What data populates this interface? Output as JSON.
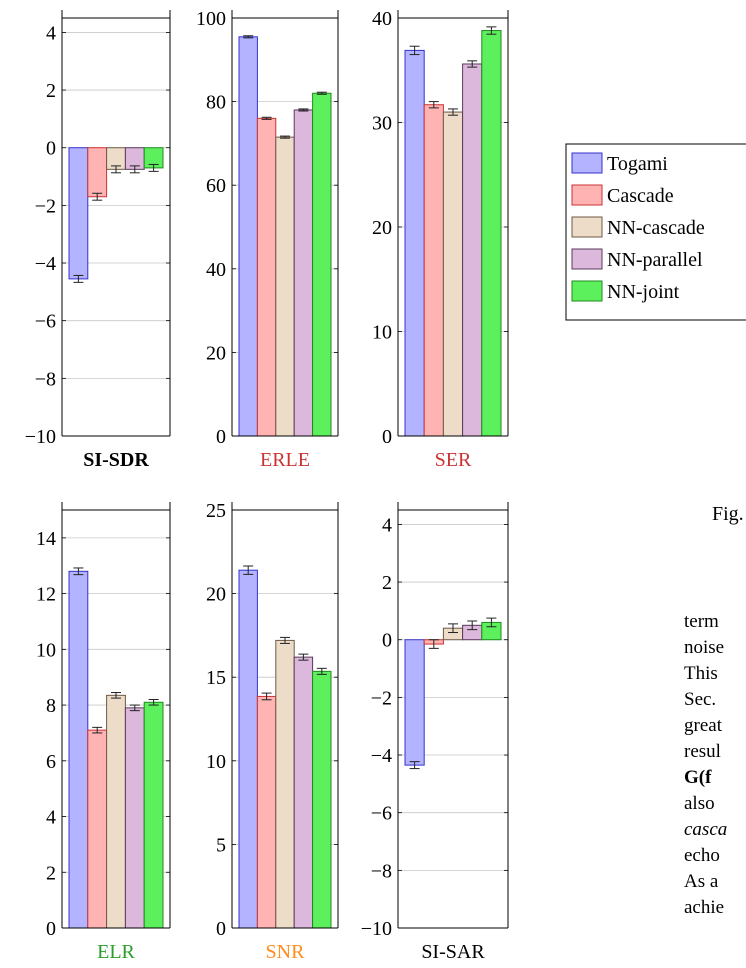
{
  "legend": {
    "placement": "right",
    "entries": [
      {
        "name": "Togami",
        "fill": "#b3b3ff",
        "stroke": "#3333cc"
      },
      {
        "name": "Cascade",
        "fill": "#ffb3b3",
        "stroke": "#cc3333"
      },
      {
        "name": "NN-cascade",
        "fill": "#ecdcc8",
        "stroke": "#6e5a46"
      },
      {
        "name": "NN-parallel",
        "fill": "#dcb8dc",
        "stroke": "#5a3a5a"
      },
      {
        "name": "NN-joint",
        "fill": "#5cf05c",
        "stroke": "#1f8a1f"
      }
    ]
  },
  "side_text": {
    "fig_label": "Fig.",
    "lines": [
      "term",
      "noise",
      "This",
      "Sec.",
      "great",
      "resul",
      "G(f",
      "also",
      "casca",
      "echo",
      "As a",
      "achie"
    ]
  },
  "chart_data": [
    {
      "type": "bar",
      "xlabel": "SI-SDR",
      "xlabel_color": "#000000",
      "xlabel_bold": true,
      "ylim": [
        -10,
        4.5
      ],
      "ticks": [
        4,
        2,
        0,
        -2,
        -4,
        -6,
        -8,
        -10
      ],
      "grid": true,
      "values": [
        -4.55,
        -1.7,
        -0.75,
        -0.75,
        -0.7
      ],
      "errors": [
        0.12,
        0.12,
        0.12,
        0.12,
        0.12
      ]
    },
    {
      "type": "bar",
      "xlabel": "ERLE",
      "xlabel_color": "#cc3333",
      "xlabel_bold": false,
      "ylim": [
        0,
        100
      ],
      "ticks": [
        100,
        80,
        60,
        40,
        20,
        0
      ],
      "grid": true,
      "values": [
        95.5,
        76,
        71.5,
        78,
        82
      ],
      "errors": [
        0.25,
        0.25,
        0.25,
        0.25,
        0.25
      ]
    },
    {
      "type": "bar",
      "xlabel": "SER",
      "xlabel_color": "#cc3333",
      "xlabel_bold": false,
      "ylim": [
        0,
        40
      ],
      "ticks": [
        40,
        30,
        20,
        10,
        0
      ],
      "grid": true,
      "values": [
        36.9,
        31.7,
        31.0,
        35.6,
        38.8
      ],
      "errors": [
        0.4,
        0.3,
        0.3,
        0.3,
        0.35
      ]
    },
    {
      "type": "bar",
      "xlabel": "ELR",
      "xlabel_color": "#2a9d2a",
      "xlabel_bold": false,
      "ylim": [
        0,
        15
      ],
      "ticks": [
        14,
        12,
        10,
        8,
        6,
        4,
        2,
        0
      ],
      "grid": true,
      "values": [
        12.8,
        7.1,
        8.35,
        7.9,
        8.1
      ],
      "errors": [
        0.12,
        0.1,
        0.1,
        0.1,
        0.1
      ]
    },
    {
      "type": "bar",
      "xlabel": "SNR",
      "xlabel_color": "#ff8c1a",
      "xlabel_bold": false,
      "ylim": [
        0,
        25
      ],
      "ticks": [
        25,
        20,
        15,
        10,
        5,
        0
      ],
      "grid": true,
      "values": [
        21.4,
        13.85,
        17.2,
        16.2,
        15.35
      ],
      "errors": [
        0.25,
        0.2,
        0.18,
        0.18,
        0.18
      ]
    },
    {
      "type": "bar",
      "xlabel": "SI-SAR",
      "xlabel_color": "#000000",
      "xlabel_bold": false,
      "ylim": [
        -10,
        4.5
      ],
      "ticks": [
        4,
        2,
        0,
        -2,
        -4,
        -6,
        -8,
        -10
      ],
      "grid": true,
      "values": [
        -4.35,
        -0.15,
        0.4,
        0.5,
        0.6
      ],
      "errors": [
        0.12,
        0.15,
        0.15,
        0.15,
        0.15
      ]
    }
  ]
}
